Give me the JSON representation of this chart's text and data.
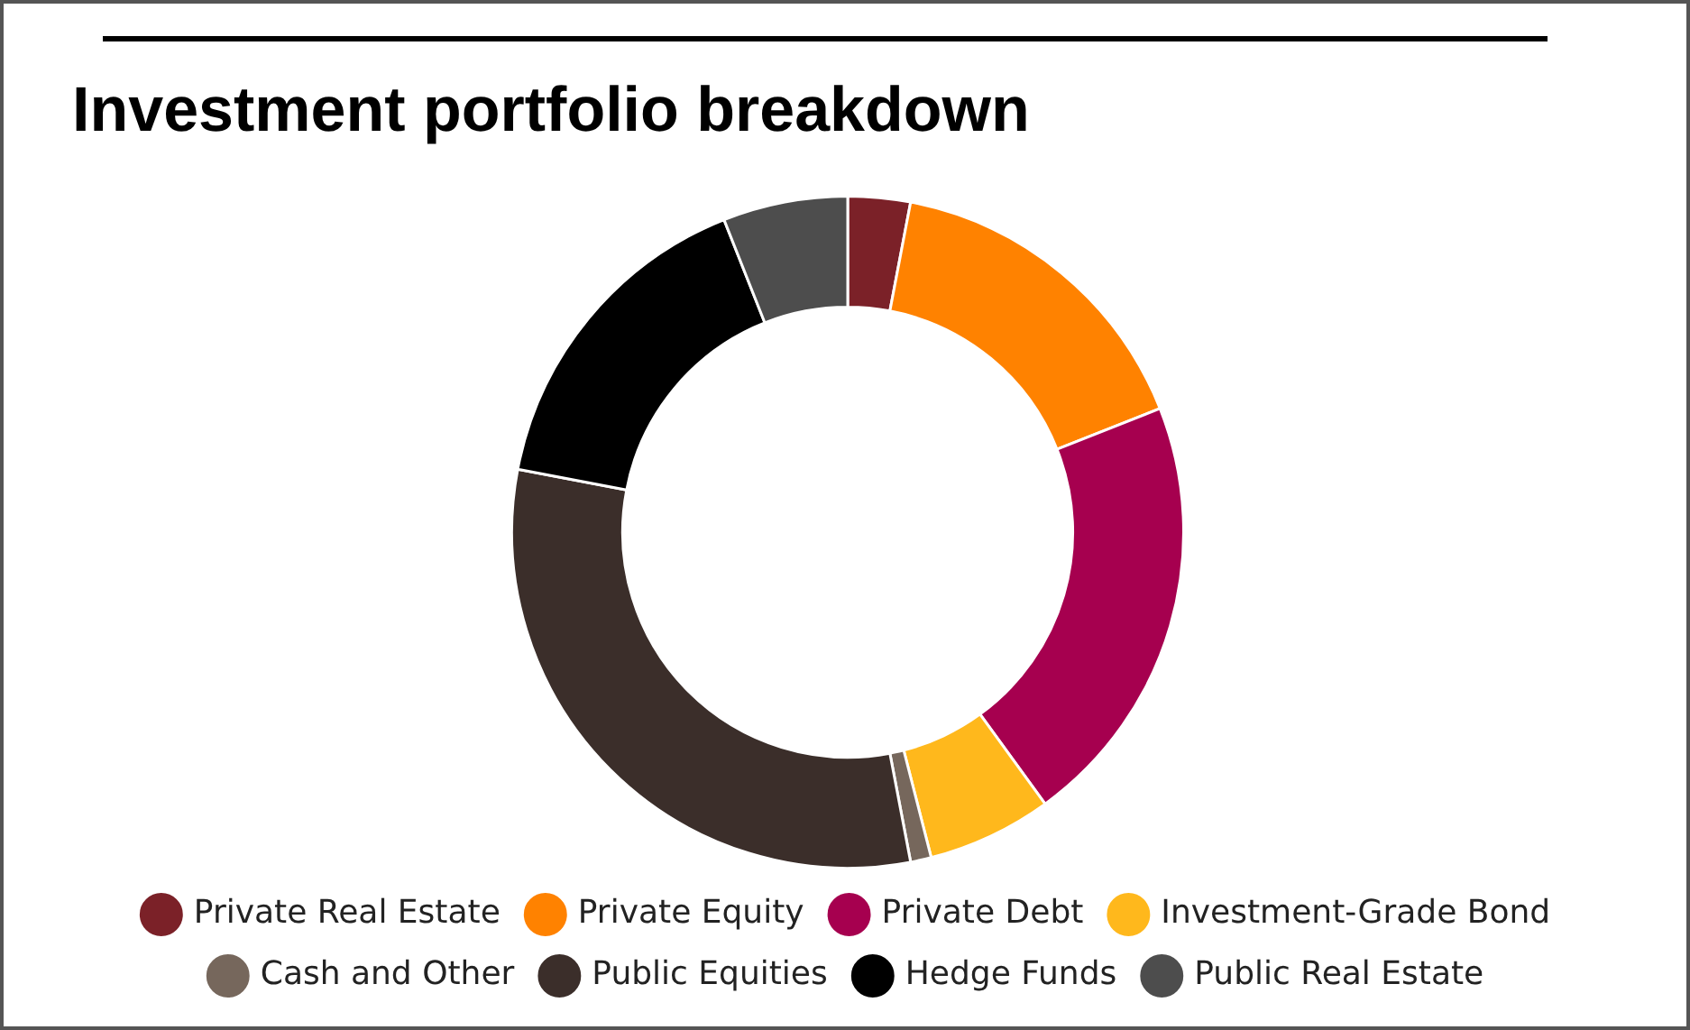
{
  "chart_data": {
    "type": "donut",
    "title": "Investment portfolio breakdown",
    "categories": [
      "Private Real Estate",
      "Private Equity",
      "Private Debt",
      "Investment-Grade Bond",
      "Cash and Other",
      "Public Equities",
      "Hedge Funds",
      "Public Real Estate"
    ],
    "values": [
      3,
      16,
      21,
      6,
      1,
      31,
      16,
      6
    ],
    "colors": [
      "#7b2128",
      "#ff8200",
      "#a6004f",
      "#ffb81c",
      "#76675c",
      "#3b2e2a",
      "#000000",
      "#4d4d4d"
    ],
    "legend": "bottom"
  }
}
